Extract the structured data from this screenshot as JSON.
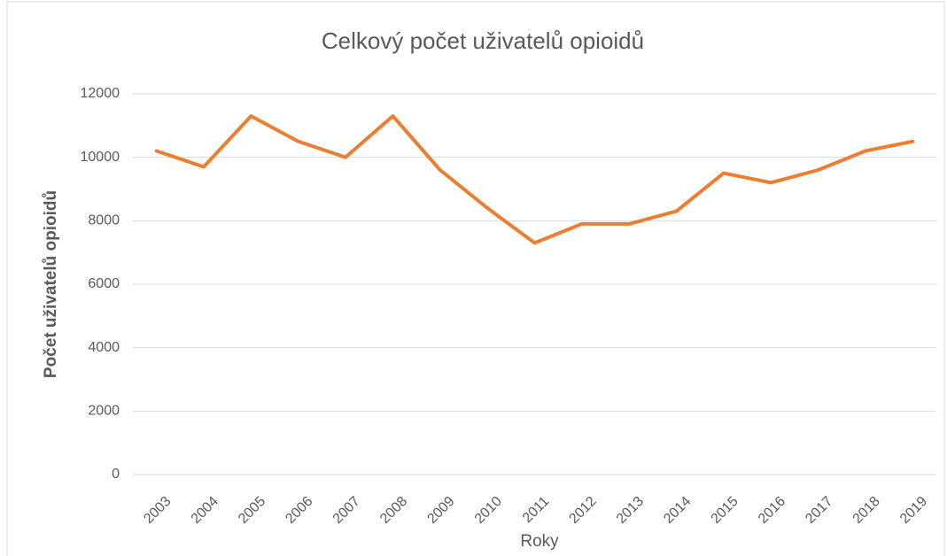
{
  "chart_data": {
    "type": "line",
    "title": "Celkový počet uživatelů opioidů",
    "x_label": "Roky",
    "y_label": "Počet uživatelů opioidů",
    "categories": [
      "2003",
      "2004",
      "2005",
      "2006",
      "2007",
      "2008",
      "2009",
      "2010",
      "2011",
      "2012",
      "2013",
      "2014",
      "2015",
      "2016",
      "2017",
      "2018",
      "2019"
    ],
    "series": [
      {
        "name": "Celkový počet uživatelů opioidů",
        "color": "#ed7d31",
        "values": [
          10200,
          9700,
          11300,
          10500,
          10000,
          11300,
          9600,
          8400,
          7300,
          7900,
          7900,
          8300,
          9500,
          9200,
          9600,
          10200,
          10500
        ]
      }
    ],
    "ylim": [
      0,
      12000
    ],
    "yticks": [
      0,
      2000,
      4000,
      6000,
      8000,
      10000,
      12000
    ],
    "grid": true
  }
}
